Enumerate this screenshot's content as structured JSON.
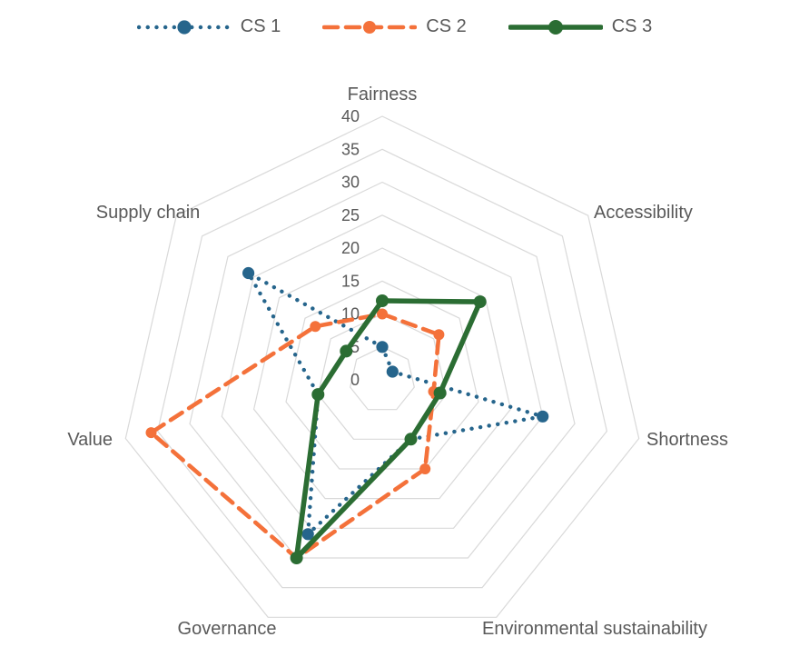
{
  "chart_data": {
    "type": "radar",
    "title": "",
    "categories": [
      "Fairness",
      "Accessibility",
      "Shortness",
      "Environmental sustainability",
      "Governance",
      "Value",
      "Supply chain"
    ],
    "axis": {
      "min": 0,
      "max": 40,
      "step": 5
    },
    "tick_labels": [
      "0",
      "5",
      "10",
      "15",
      "20",
      "25",
      "30",
      "35",
      "40"
    ],
    "grid": true,
    "grid_color": "#d9d9d9",
    "text_color": "#595959",
    "legend_position": "top",
    "series": [
      {
        "name": "CS 1",
        "color": "#26658C",
        "line_style": "dotted",
        "values": [
          5,
          2,
          25,
          10,
          26,
          10,
          26
        ]
      },
      {
        "name": "CS 2",
        "color": "#F4713A",
        "line_style": "dashed",
        "values": [
          10,
          11,
          8,
          15,
          30,
          36,
          13
        ]
      },
      {
        "name": "CS 3",
        "color": "#2B6D33",
        "line_style": "solid",
        "values": [
          12,
          19,
          9,
          10,
          30,
          10,
          7
        ]
      }
    ]
  }
}
